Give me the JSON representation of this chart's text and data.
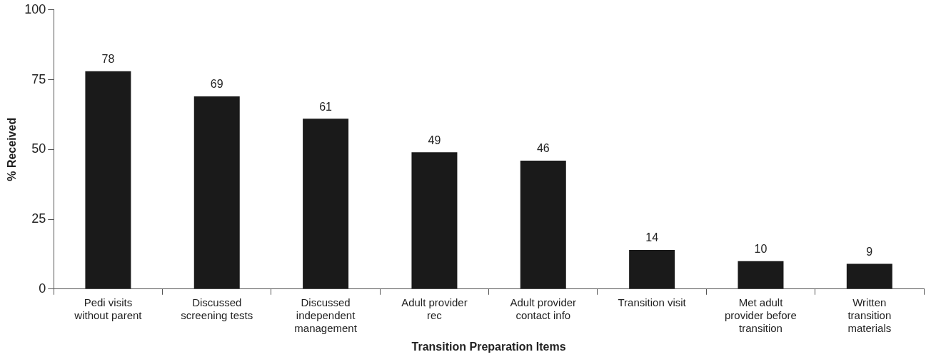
{
  "chart_data": {
    "type": "bar",
    "xlabel": "Transition Preparation Items",
    "ylabel": "% Received",
    "categories": [
      "Pedi visits without parent",
      "Discussed screening tests",
      "Discussed independent management",
      "Adult provider rec",
      "Adult provider contact info",
      "Transition visit",
      "Met adult provider before transition",
      "Written transition materials"
    ],
    "values": [
      78,
      69,
      61,
      49,
      46,
      14,
      10,
      9
    ],
    "color": "#1a1a1a",
    "ylim": [
      0,
      100
    ],
    "yticks": [
      0,
      25,
      50,
      75,
      100
    ],
    "grid": false,
    "legend": false,
    "data_labels": true
  }
}
